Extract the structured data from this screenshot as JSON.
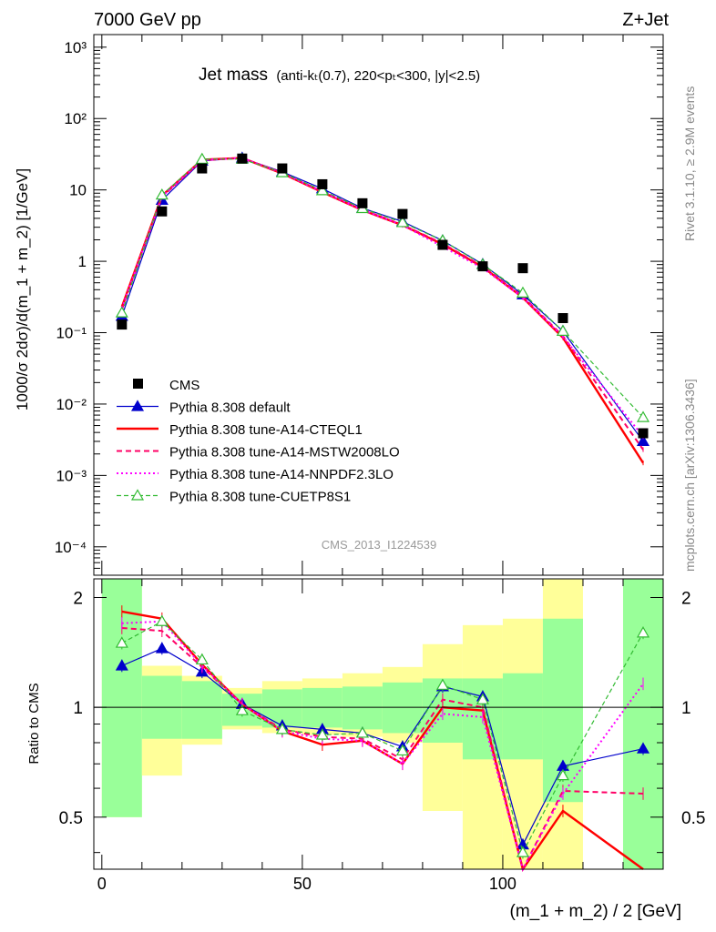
{
  "header": {
    "energy_label": "7000 GeV pp",
    "process_label": "Z+Jet"
  },
  "side_labels": {
    "rivet": "Rivet 3.1.10, ≥ 2.9M events",
    "mcplots": "mcplots.cern.ch [arXiv:1306.3436]"
  },
  "analysis_id": "CMS_2013_I1224539",
  "colors": {
    "cms": "#000000",
    "default": "#0000cc",
    "cteql1": "#ff0000",
    "mstw": "#ff0066",
    "nnpdf": "#ff00ff",
    "cuetp8s1": "#33bb33",
    "band_inner": "#99ff99",
    "band_outer": "#ffff99"
  },
  "chart_data": {
    "type": "line",
    "title_main": "Jet mass",
    "title_detail": "(anti-kₜ(0.7), 220<pₜ<300, |y|<2.5)",
    "ylabel": "1000/σ 2dσ)/d(m_1 + m_2) [1/GeV]",
    "xlabel": "(m_1 + m_2) / 2 [GeV]",
    "ratio_ylabel": "Ratio to CMS",
    "xlim": [
      -2,
      140
    ],
    "ylim": [
      4e-05,
      1500
    ],
    "yscale": "log",
    "ratio_ylim": [
      0.36,
      2.25
    ],
    "ratio_yscale": "log",
    "x_ticks": [
      "0",
      "50",
      "100"
    ],
    "y_ticks": [
      "10⁻⁴",
      "10⁻³",
      "10⁻²",
      "10⁻¹",
      "1",
      "10",
      "10²",
      "10³"
    ],
    "ratio_ticks": [
      "0.5",
      "1",
      "2"
    ],
    "x": [
      5,
      15,
      25,
      35,
      45,
      55,
      65,
      75,
      85,
      95,
      105,
      115,
      135
    ],
    "data": {
      "name": "CMS",
      "values": [
        0.13,
        5.0,
        20.0,
        27.5,
        20.0,
        12.0,
        6.5,
        4.6,
        1.7,
        0.85,
        0.8,
        0.16,
        0.0039
      ],
      "ratio_band_inner": [
        [
          0.5,
          2.3
        ],
        [
          0.82,
          1.22
        ],
        [
          0.82,
          1.18
        ],
        [
          0.89,
          1.09
        ],
        [
          0.88,
          1.12
        ],
        [
          0.88,
          1.13
        ],
        [
          0.87,
          1.14
        ],
        [
          0.85,
          1.17
        ],
        [
          0.8,
          1.2
        ],
        [
          0.72,
          1.2
        ],
        [
          0.72,
          1.24
        ],
        [
          0.55,
          1.75
        ],
        [
          0.3,
          2.3
        ]
      ],
      "ratio_band_outer": [
        [
          0.5,
          2.3
        ],
        [
          0.65,
          1.3
        ],
        [
          0.79,
          1.22
        ],
        [
          0.87,
          1.13
        ],
        [
          0.85,
          1.18
        ],
        [
          0.84,
          1.2
        ],
        [
          0.83,
          1.24
        ],
        [
          0.8,
          1.29
        ],
        [
          0.52,
          1.49
        ],
        [
          0.3,
          1.68
        ],
        [
          0.3,
          1.75
        ],
        [
          0.3,
          2.3
        ],
        [
          0.3,
          2.3
        ]
      ]
    },
    "series": [
      {
        "name": "Pythia 8.308 default",
        "values": [
          0.17,
          7.2,
          25.5,
          28.0,
          17.9,
          10.4,
          5.55,
          3.6,
          1.95,
          0.91,
          0.34,
          0.105,
          0.003
        ],
        "ratio": [
          1.3,
          1.45,
          1.25,
          1.02,
          0.89,
          0.87,
          0.85,
          0.78,
          1.14,
          1.07,
          0.42,
          0.69,
          0.77
        ]
      },
      {
        "name": "Pythia 8.308 tune-A14-CTEQL1",
        "values": [
          0.23,
          8.3,
          26.5,
          28.0,
          17.0,
          9.3,
          5.2,
          3.2,
          1.73,
          0.83,
          0.31,
          0.085,
          0.0015
        ],
        "ratio": [
          1.83,
          1.75,
          1.31,
          1.02,
          0.86,
          0.79,
          0.81,
          0.7,
          1.0,
          0.98,
          0.3,
          0.52,
          0.3
        ]
      },
      {
        "name": "Pythia 8.308 tune-A14-MSTW2008LO",
        "values": [
          0.21,
          8.0,
          26.0,
          28.0,
          17.3,
          9.5,
          5.3,
          3.25,
          1.77,
          0.85,
          0.32,
          0.09,
          0.0023
        ],
        "ratio": [
          1.65,
          1.62,
          1.29,
          1.02,
          0.87,
          0.83,
          0.82,
          0.72,
          1.05,
          1.0,
          0.35,
          0.59,
          0.58
        ]
      },
      {
        "name": "Pythia 8.308 tune-A14-NNPDF2.3LO",
        "values": [
          0.22,
          8.1,
          26.2,
          28.0,
          17.2,
          9.4,
          5.25,
          3.2,
          1.6,
          0.8,
          0.31,
          0.088,
          0.0035
        ],
        "ratio": [
          1.7,
          1.72,
          1.3,
          1.02,
          0.86,
          0.82,
          0.81,
          0.7,
          0.96,
          0.94,
          0.33,
          0.58,
          1.16
        ]
      },
      {
        "name": "Pythia 8.308 tune-CUETP8S1",
        "values": [
          0.19,
          8.5,
          27.0,
          27.0,
          17.5,
          9.8,
          5.5,
          3.5,
          1.95,
          0.9,
          0.36,
          0.105,
          0.0065
        ],
        "ratio": [
          1.5,
          1.72,
          1.35,
          0.98,
          0.87,
          0.84,
          0.85,
          0.76,
          1.15,
          1.05,
          0.4,
          0.65,
          1.6
        ]
      }
    ]
  },
  "legend_placement": "bottom-left"
}
